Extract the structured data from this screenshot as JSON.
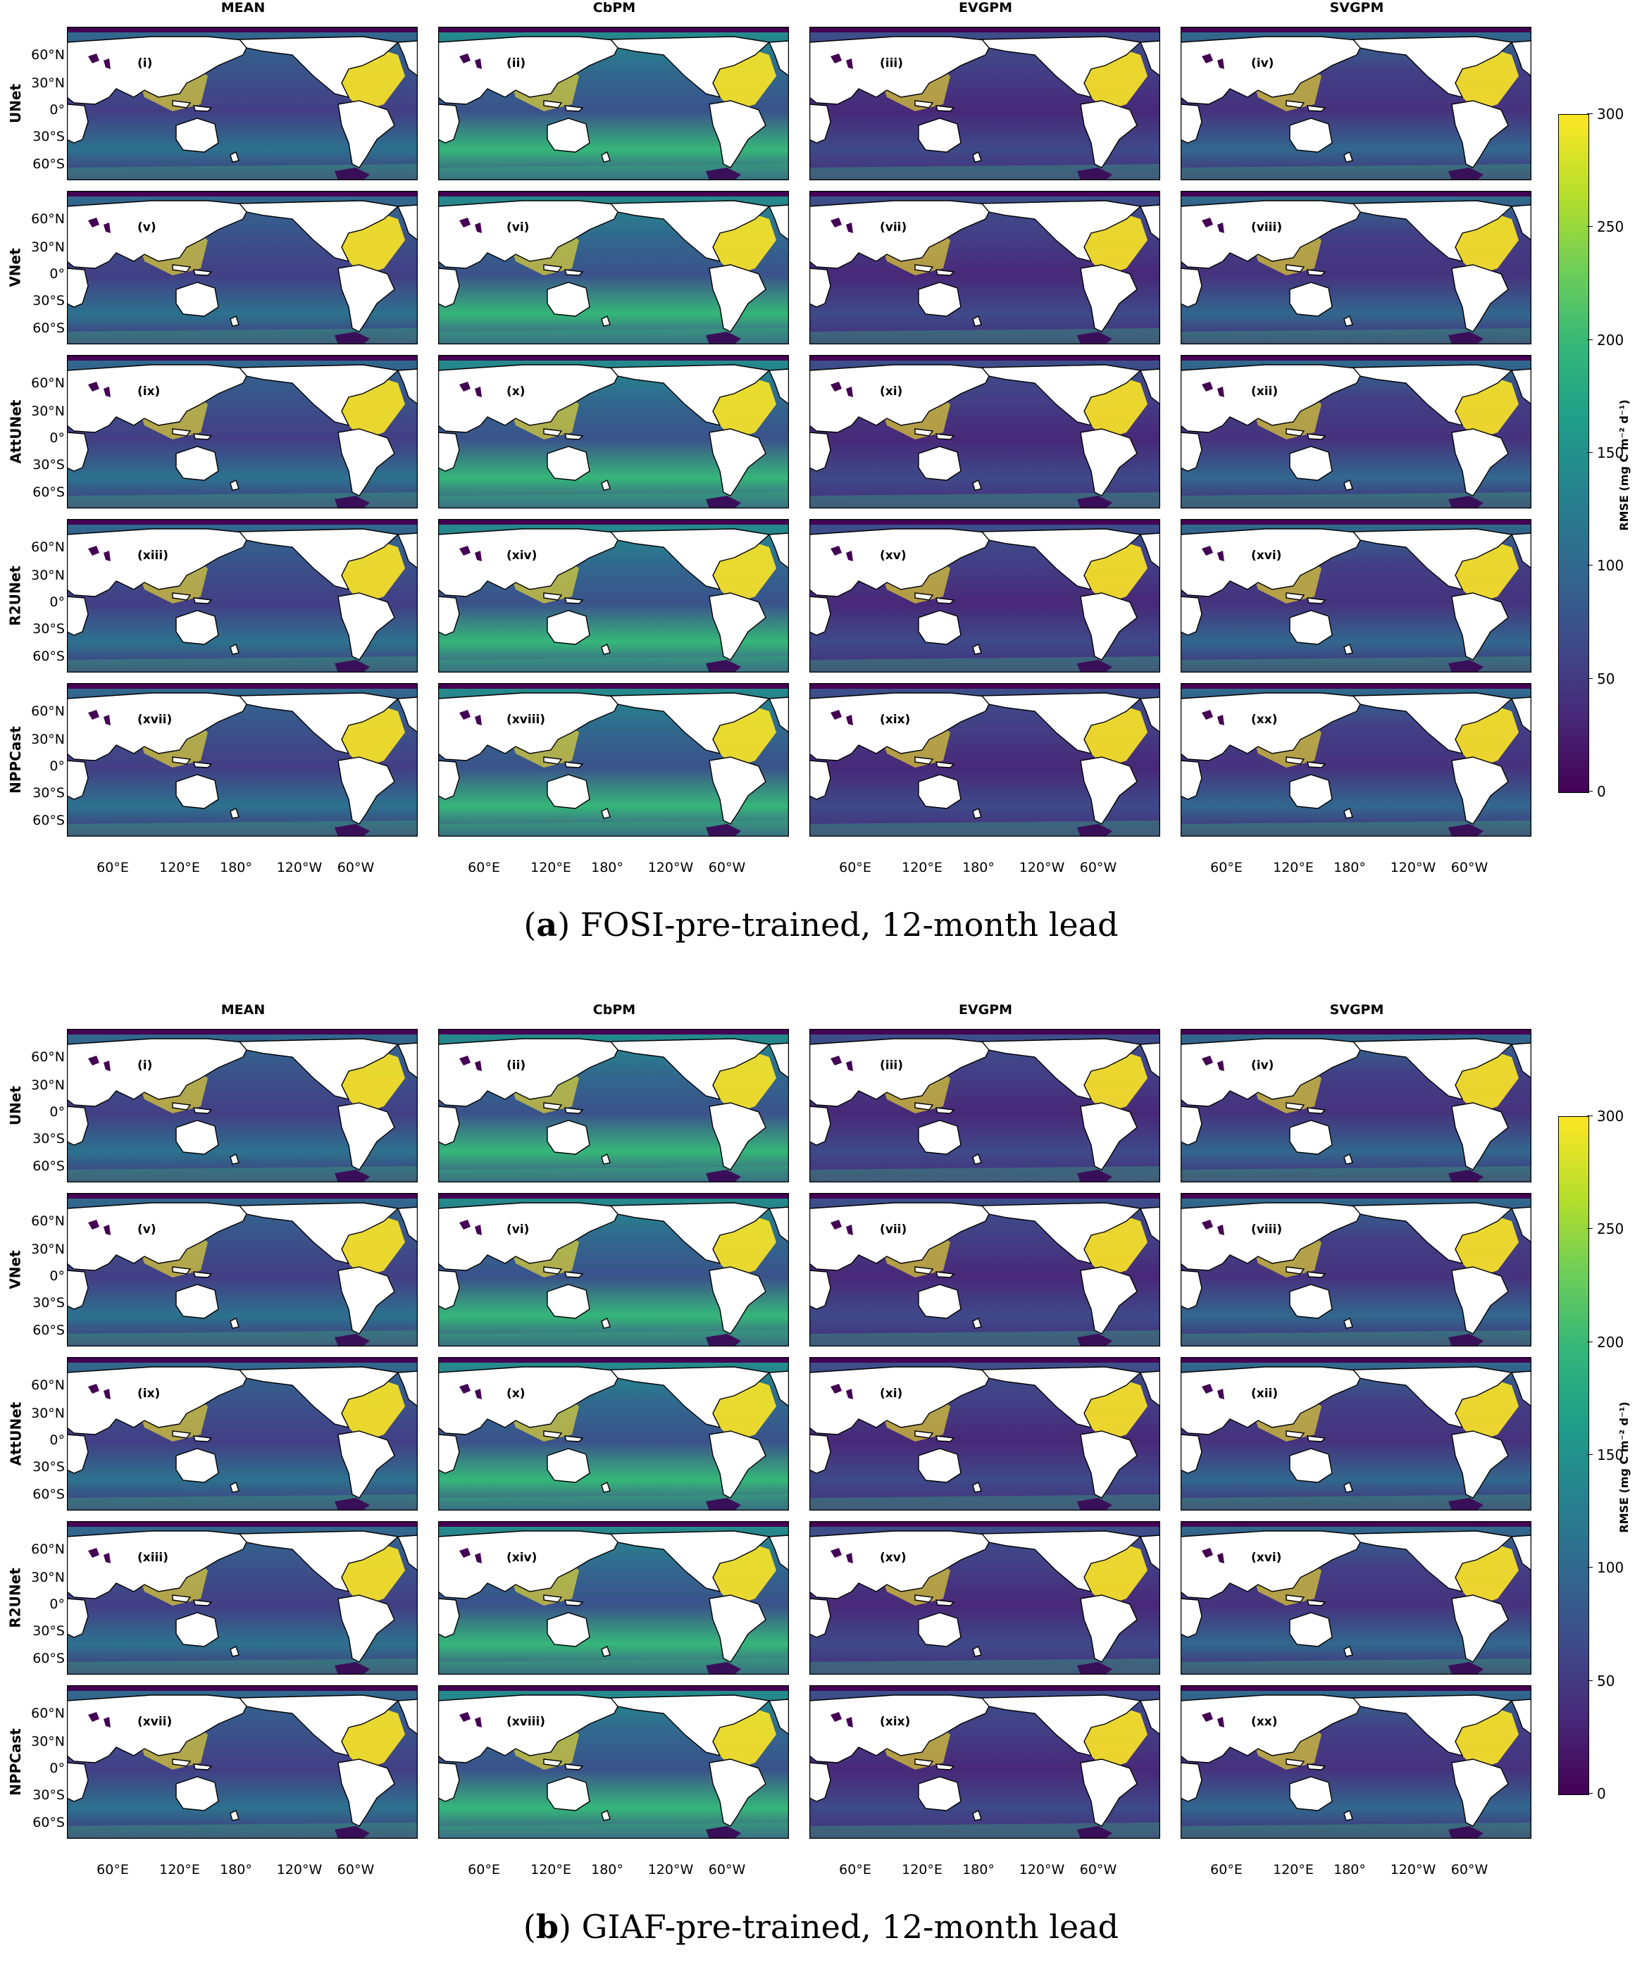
{
  "columns": [
    "MEAN",
    "CbPM",
    "EVGPM",
    "SVGPM"
  ],
  "rows": [
    "UNet",
    "VNet",
    "AttUNet",
    "R2UNet",
    "NPPCast"
  ],
  "panel_labels": [
    "(i)",
    "(ii)",
    "(iii)",
    "(iv)",
    "(v)",
    "(vi)",
    "(vii)",
    "(viii)",
    "(ix)",
    "(x)",
    "(xi)",
    "(xii)",
    "(xiii)",
    "(xiv)",
    "(xv)",
    "(xvi)",
    "(xvii)",
    "(xviii)",
    "(xix)",
    "(xx)"
  ],
  "lat_ticks": [
    "60°N",
    "30°N",
    "0°",
    "30°S",
    "60°S"
  ],
  "lon_ticks": [
    "60°E",
    "120°E",
    "180°",
    "120°W",
    "60°W"
  ],
  "colorbar": {
    "label": "RMSE (mg C m⁻² d⁻¹)",
    "ticks": [
      "0",
      "50",
      "100",
      "150",
      "200",
      "250",
      "300"
    ],
    "colormap": "viridis",
    "range": [
      0,
      300
    ]
  },
  "figures": [
    {
      "letter": "a",
      "caption_rest": " FOSI-pre-trained, 12-month lead"
    },
    {
      "letter": "b",
      "caption_rest": " GIAF-pre-trained, 12-month lead"
    }
  ],
  "colors": {
    "ocean_low": "#440154",
    "ocean_mid": "#3b528b",
    "ocean_teal": "#21918c",
    "ocean_high": "#fde725",
    "land": "#ffffff"
  }
}
